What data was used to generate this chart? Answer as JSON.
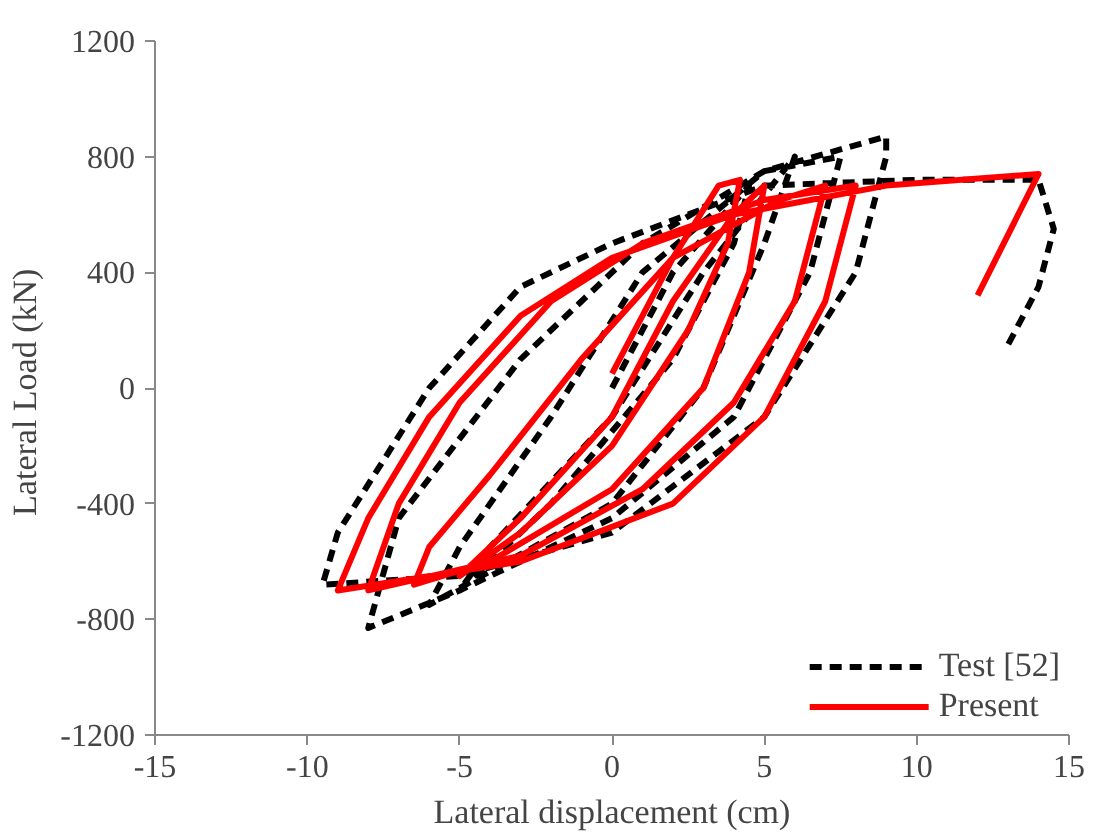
{
  "chart_data": {
    "type": "line",
    "xlabel": "Lateral displacement (cm)",
    "ylabel": "Lateral  Load (kN)",
    "xlim": [
      -15,
      15
    ],
    "xticks": [
      -15,
      -10,
      -5,
      0,
      5,
      10,
      15
    ],
    "ylim": [
      -1200,
      1200
    ],
    "yticks": [
      -1200,
      -800,
      -400,
      0,
      400,
      800,
      1200
    ],
    "grid": false,
    "legend": "bottom right",
    "marker": "none",
    "series": [
      {
        "name": "Test [52]",
        "color": "#000000",
        "line_style": "dashed",
        "x": [
          0,
          2,
          4.5,
          4,
          2,
          -2,
          -5,
          -4,
          0,
          3,
          6,
          5,
          3,
          0,
          -6,
          -5,
          -2,
          1,
          5,
          7.5,
          6.5,
          4,
          0,
          -5,
          -8,
          -7,
          -3,
          1,
          5,
          9,
          9,
          8,
          5,
          0,
          -5,
          -9.5,
          -9,
          -6,
          -3,
          0,
          5,
          10,
          14,
          14.5,
          14,
          13
        ],
        "values": [
          0,
          400,
          700,
          500,
          100,
          -400,
          -700,
          -550,
          -100,
          400,
          800,
          500,
          0,
          -400,
          -750,
          -550,
          -100,
          400,
          750,
          800,
          400,
          -100,
          -450,
          -700,
          -830,
          -450,
          100,
          500,
          750,
          870,
          800,
          400,
          -100,
          -500,
          -650,
          -680,
          -500,
          0,
          350,
          500,
          700,
          720,
          720,
          550,
          350,
          150
        ]
      },
      {
        "name": "Present",
        "color": "#ff0000",
        "line_style": "solid",
        "x": [
          0,
          2,
          3.5,
          4.2,
          3.8,
          2.5,
          0,
          -3,
          -5,
          -4.5,
          -3,
          0,
          2,
          4,
          5,
          4.5,
          3,
          0,
          -4,
          -6.5,
          -6,
          -4,
          -1,
          2,
          5.5,
          7,
          6,
          4,
          1,
          -3,
          -8,
          -7,
          -5,
          -2,
          1,
          5,
          8,
          7,
          5,
          2,
          -3,
          -9,
          -8,
          -6,
          -3,
          0,
          4,
          9,
          14,
          12
        ],
        "values": [
          50,
          450,
          700,
          720,
          500,
          200,
          -200,
          -500,
          -650,
          -600,
          -450,
          -100,
          300,
          600,
          700,
          400,
          0,
          -350,
          -600,
          -680,
          -550,
          -300,
          100,
          450,
          650,
          700,
          300,
          -50,
          -350,
          -580,
          -700,
          -400,
          -50,
          300,
          500,
          650,
          700,
          300,
          -100,
          -400,
          -600,
          -700,
          -450,
          -100,
          250,
          450,
          600,
          700,
          740,
          320
        ]
      }
    ]
  }
}
